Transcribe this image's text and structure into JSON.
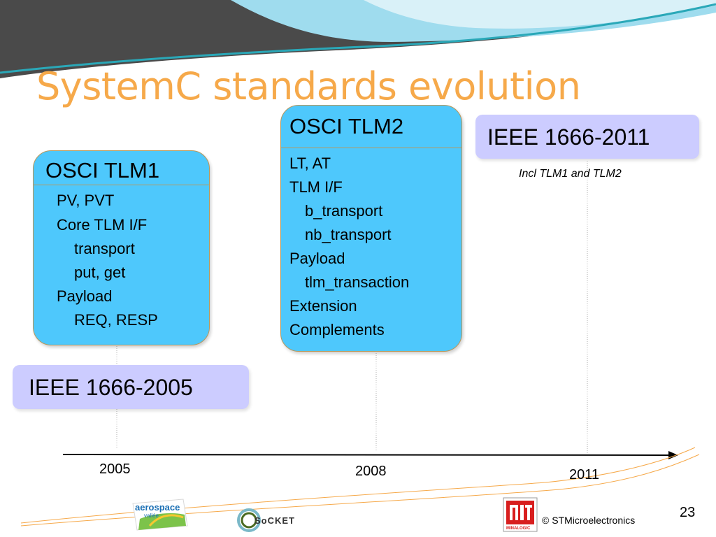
{
  "title": "SystemC standards evolution",
  "tlm1": {
    "heading": "OSCI TLM1",
    "lines": [
      "PV, PVT",
      "Core TLM I/F",
      "transport",
      "put, get",
      "Payload",
      "REQ, RESP"
    ]
  },
  "tlm2": {
    "heading": "OSCI TLM2",
    "lines": [
      "LT, AT",
      "TLM I/F",
      "b_transport",
      "nb_transport",
      "Payload",
      "tlm_transaction",
      "Extension",
      "Complements"
    ]
  },
  "ieee2005": {
    "label": "IEEE 1666-2005"
  },
  "ieee2011": {
    "label": "IEEE 1666-2011",
    "note": "Incl TLM1 and TLM2"
  },
  "timeline": {
    "years": [
      "2005",
      "2008",
      "2011"
    ]
  },
  "footer": {
    "logos": [
      "aerospace",
      "SoCKET",
      "MINALOGIC"
    ],
    "aerospace_text": "aerospace",
    "aerospace_sub": "vallée",
    "socket_text": "SoCKET",
    "minalogic_text": "MINALOGIC",
    "copyright": "© STMicroelectronics",
    "page_number": "23"
  },
  "colors": {
    "title": "#f6a94a",
    "card_fill": "#4ec8fc",
    "card_border": "#b8975a",
    "ieee_fill": "#ccccff",
    "header_dark": "#4a4a4a",
    "header_teal": "#2aa8b8"
  }
}
